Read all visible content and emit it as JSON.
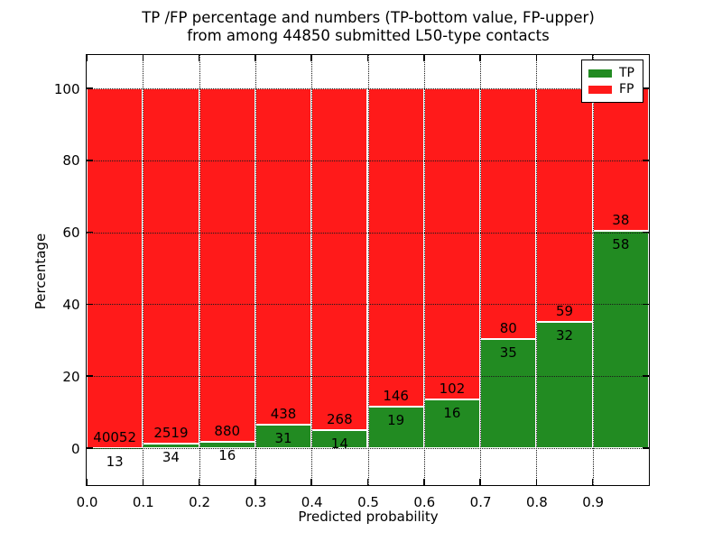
{
  "chart_data": {
    "type": "bar",
    "stacked": true,
    "normalized_to_percent": true,
    "title_line1": "TP /FP percentage and numbers (TP-bottom value, FP-upper)",
    "title_line2": "from among 44850 submitted L50-type contacts",
    "xlabel": "Predicted probability",
    "ylabel": "Percentage",
    "total_contacts": 44850,
    "xlim": [
      0.0,
      1.0
    ],
    "ylim": [
      -10.5,
      109.5
    ],
    "grid": "dotted",
    "legend_position": "upper right",
    "x_tick_labels": [
      "0.0",
      "0.1",
      "0.2",
      "0.3",
      "0.4",
      "0.5",
      "0.6",
      "0.7",
      "0.8",
      "0.9"
    ],
    "y_tick_values": [
      0,
      20,
      40,
      60,
      80,
      100
    ],
    "bin_edges": [
      0.0,
      0.1,
      0.2,
      0.3,
      0.4,
      0.5,
      0.6,
      0.7,
      0.8,
      0.9,
      1.0
    ],
    "series": [
      {
        "name": "TP",
        "color": "#228b22",
        "counts": [
          13,
          34,
          16,
          31,
          14,
          19,
          16,
          35,
          32,
          58
        ]
      },
      {
        "name": "FP",
        "color": "#ff1a1a",
        "counts": [
          40052,
          2519,
          880,
          438,
          268,
          146,
          102,
          80,
          59,
          38
        ]
      }
    ]
  }
}
